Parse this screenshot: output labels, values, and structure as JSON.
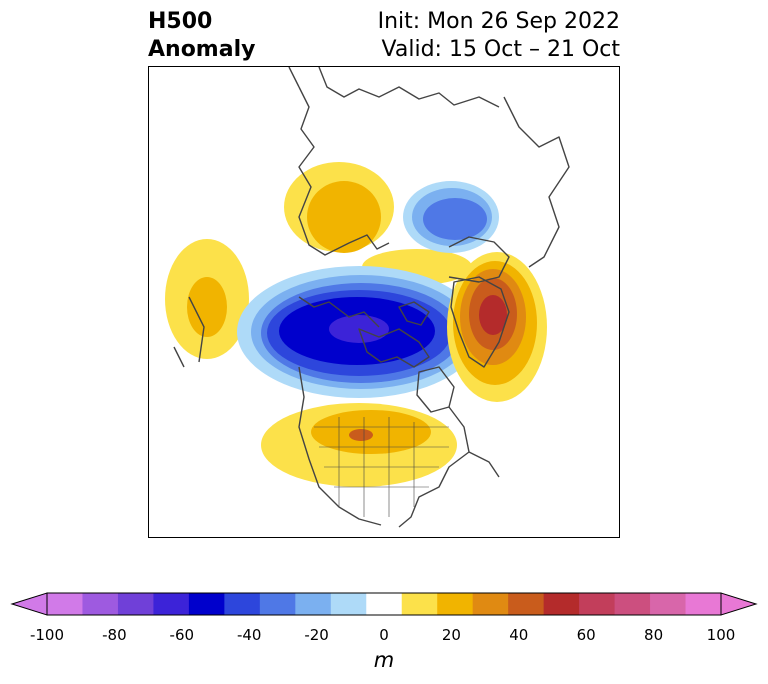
{
  "header": {
    "title_line1": "H500",
    "title_line2": "Anomaly",
    "init_text": "Init: Mon 26 Sep 2022",
    "valid_text": "Valid: 15 Oct – 21 Oct"
  },
  "colorbar": {
    "unit": "m",
    "tick_labels": [
      "-100",
      "-80",
      "-60",
      "-40",
      "-20",
      "0",
      "20",
      "40",
      "60",
      "80",
      "100"
    ],
    "levels": [
      -100,
      -90,
      -80,
      -70,
      -60,
      -50,
      -40,
      -30,
      -20,
      -10,
      10,
      20,
      30,
      40,
      50,
      60,
      70,
      80,
      90,
      100
    ],
    "colors": [
      "#d17ae8",
      "#9e5ae0",
      "#7040d8",
      "#3c23d8",
      "#0000cc",
      "#2d46dc",
      "#4f78e6",
      "#7bb0f0",
      "#aedaf8",
      "#ffffff",
      "#fce14a",
      "#f1b400",
      "#e08a12",
      "#c95c1c",
      "#b42b2b",
      "#c23e5b",
      "#cc4f7f",
      "#d866aa",
      "#e878d5"
    ],
    "under_color": "#d17ae8",
    "over_color": "#e878d5"
  },
  "map": {
    "projection": "polar stereographic (North America / Arctic)",
    "anomaly_centers": [
      {
        "region": "Gulf of Alaska / NE Pacific",
        "sign": "negative",
        "peak_m": -70
      },
      {
        "region": "Eastern Siberia / Kamchatka",
        "sign": "positive",
        "peak_m": 30
      },
      {
        "region": "Laptev / Kara Sea",
        "sign": "positive",
        "peak_m": 20
      },
      {
        "region": "Western Russia",
        "sign": "negative",
        "peak_m": -40
      },
      {
        "region": "Greenland / Iceland",
        "sign": "positive",
        "peak_m": 60
      },
      {
        "region": "Central United States",
        "sign": "positive",
        "peak_m": 40
      },
      {
        "region": "Central Pacific",
        "sign": "positive",
        "peak_m": 20
      }
    ]
  }
}
